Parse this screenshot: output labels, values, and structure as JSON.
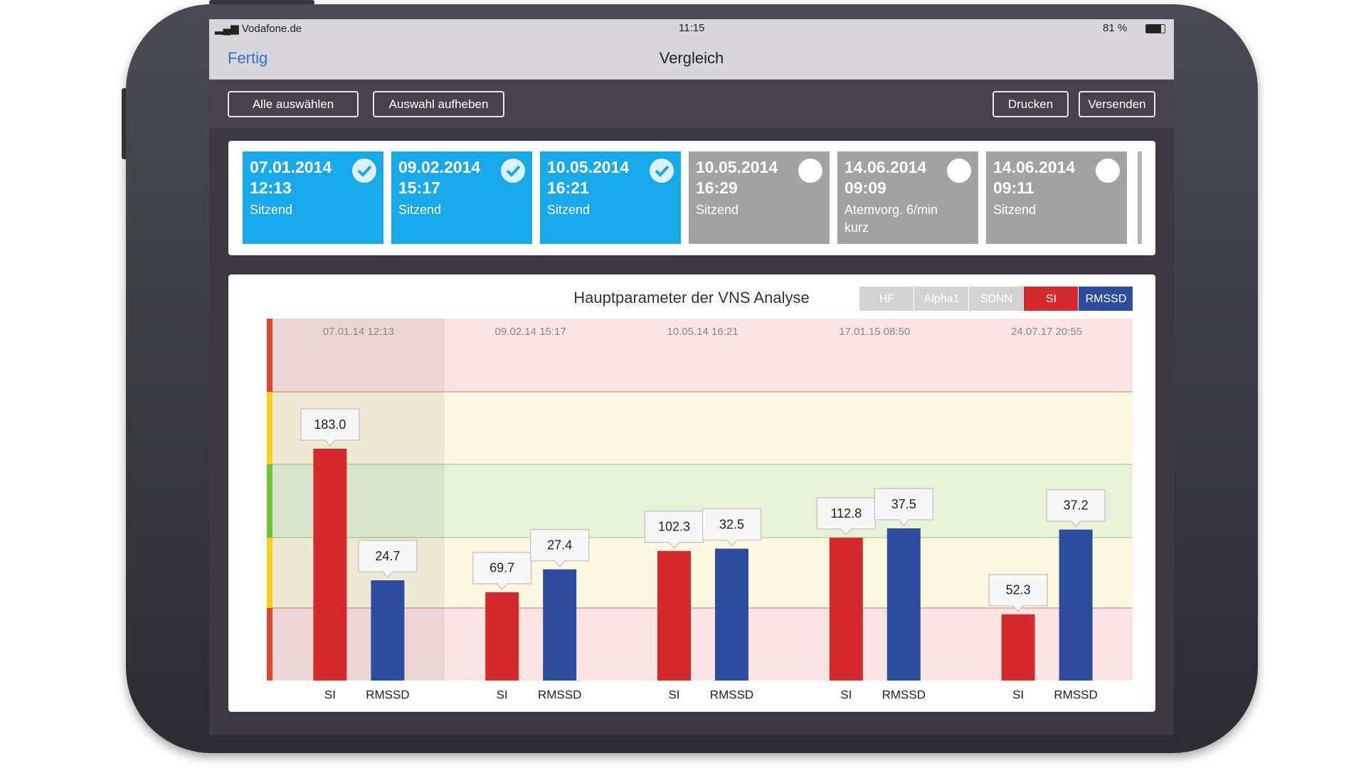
{
  "status_bar": {
    "carrier": "Vodafone.de",
    "time": "11:15",
    "battery": "81 %"
  },
  "nav_bar": {
    "back": "Fertig",
    "title": "Vergleich"
  },
  "toolbar": {
    "left": [
      "Alle auswählen",
      "Auswahl aufheben"
    ],
    "right": [
      "Drucken",
      "Versenden"
    ]
  },
  "sessions": [
    {
      "date": "07.01.2014",
      "time": "12:13",
      "position": "Sitzend",
      "selected": true
    },
    {
      "date": "09.02.2014",
      "time": "15:17",
      "position": "Sitzend",
      "selected": true
    },
    {
      "date": "10.05.2014",
      "time": "16:21",
      "position": "Sitzend",
      "selected": true
    },
    {
      "date": "10.05.2014",
      "time": "16:29",
      "position": "Sitzend",
      "selected": false
    },
    {
      "date": "14.06.2014",
      "time": "09:09",
      "position": "Atemvorg. 6/min kurz",
      "selected": false
    },
    {
      "date": "14.06.2014",
      "time": "09:11",
      "position": "Sitzend",
      "selected": false
    }
  ],
  "chart_data": {
    "type": "bar",
    "title": "Hauptparameter der VNS Analyse",
    "inactive_parameters": [
      "HF",
      "Alpha1",
      "SDNN"
    ],
    "categories": [
      "07.01.14 12:13",
      "09.02.14 15:17",
      "10.05.14 16:21",
      "17.01.15 08:50",
      "24.07.17 20:55"
    ],
    "series": [
      {
        "name": "SI",
        "color": "#d42a2e",
        "values": [
          183.0,
          69.7,
          102.3,
          112.8,
          52.3
        ],
        "value_labels": [
          "183.0",
          "69.7",
          "102.3",
          "112.8",
          "52.3"
        ]
      },
      {
        "name": "RMSSD",
        "color": "#2d4c9e",
        "values": [
          24.7,
          27.4,
          32.5,
          37.5,
          37.2
        ],
        "value_labels": [
          "24.7",
          "27.4",
          "32.5",
          "37.5",
          "37.2"
        ]
      }
    ]
  }
}
